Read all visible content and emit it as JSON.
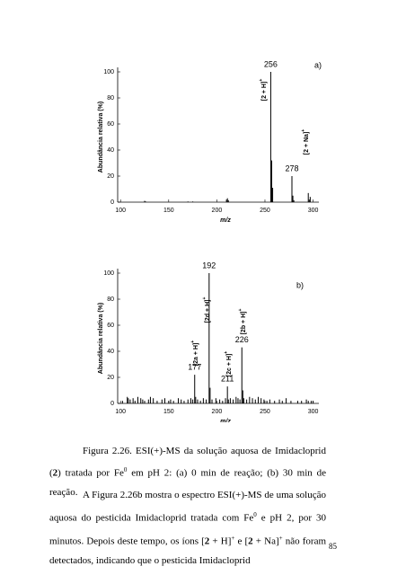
{
  "chart_data": [
    {
      "type": "bar",
      "panel": "a)",
      "ylabel": "Abundância relativa (%)",
      "xlabel": "m/z",
      "xlim": [
        97,
        306
      ],
      "ylim": [
        0,
        100
      ],
      "xticks": [
        100,
        150,
        200,
        250,
        300
      ],
      "yticks": [
        0,
        20,
        40,
        60,
        80,
        100
      ],
      "color": "#000000",
      "x": [
        125,
        126,
        170,
        175,
        210,
        211,
        212,
        256,
        257,
        258,
        278,
        279,
        280,
        295,
        296,
        297
      ],
      "values": [
        1,
        0.5,
        0.5,
        0.5,
        2,
        3,
        1.5,
        100,
        32,
        11,
        20,
        5,
        1.5,
        7,
        2,
        4
      ],
      "peak_labels": [
        {
          "x": 256,
          "label": "256"
        },
        {
          "x": 278,
          "label": "278"
        }
      ],
      "annotations": [
        {
          "text": "[2 + H]",
          "sup": "+"
        },
        {
          "text": "[2 + Na]",
          "sup": "+"
        }
      ]
    },
    {
      "type": "bar",
      "panel": "b)",
      "ylabel": "Abundância relativa (%)",
      "xlabel": "m/z",
      "xlim": [
        97,
        306
      ],
      "ylim": [
        0,
        100
      ],
      "xticks": [
        100,
        150,
        200,
        250,
        300
      ],
      "yticks": [
        0,
        20,
        40,
        60,
        80,
        100
      ],
      "color": "#000000",
      "x": [
        102,
        107,
        108,
        110,
        113,
        115,
        118,
        121,
        123,
        125,
        129,
        131,
        134,
        138,
        143,
        146,
        150,
        152,
        155,
        160,
        163,
        166,
        170,
        173,
        175,
        177,
        178,
        180,
        183,
        186,
        189,
        192,
        193,
        195,
        199,
        203,
        206,
        209,
        211,
        212,
        214,
        217,
        220,
        222,
        224,
        226,
        227,
        228,
        231,
        234,
        237,
        240,
        243,
        246,
        249,
        252,
        255,
        260,
        265,
        268,
        272,
        277,
        284,
        288,
        293,
        295,
        298,
        300
      ],
      "values": [
        2,
        5,
        4,
        3,
        4,
        2,
        5,
        4,
        3,
        2,
        3,
        5,
        4,
        2,
        3,
        4,
        2,
        3,
        2,
        4,
        3,
        2,
        3,
        4,
        3,
        22,
        5,
        3,
        2,
        4,
        3,
        100,
        12,
        3,
        4,
        3,
        2,
        4,
        13,
        3,
        4,
        3,
        5,
        4,
        3,
        43,
        10,
        4,
        3,
        5,
        4,
        3,
        5,
        4,
        3,
        2,
        3,
        2,
        3,
        2,
        4,
        2,
        2,
        2,
        3,
        2,
        2,
        2
      ],
      "peak_labels": [
        {
          "x": 192,
          "label": "192"
        },
        {
          "x": 226,
          "label": "226"
        },
        {
          "x": 177,
          "label": "177"
        },
        {
          "x": 211,
          "label": "211"
        }
      ],
      "annotations": [
        {
          "text": "[2a + H]",
          "sup": "+"
        },
        {
          "text": "[2d + H]",
          "sup": "+"
        },
        {
          "text": "[2c + H]",
          "sup": "+"
        },
        {
          "text": "[2b + H]",
          "sup": "+"
        }
      ]
    }
  ],
  "caption": [
    {
      "text": "Figura 2.26. ESI(+)-MS da solução aquosa de Imidacloprid ("
    },
    {
      "text": "2",
      "style": "bold"
    },
    {
      "text": ") tratada  por Fe"
    },
    {
      "text": "0",
      "style": "sup"
    },
    {
      "text": " em pH 2: (a) 0 min de reação; (b) 30 min de reação."
    }
  ],
  "paragraph": [
    {
      "text": "A Figura 2.26b mostra o espectro ESI(+)-MS de uma solução aquosa do pesticida Imidacloprid tratada com Fe"
    },
    {
      "text": "0",
      "style": "sup"
    },
    {
      "text": " e pH  2, por 30 minutos. Depois deste tempo, os íons ["
    },
    {
      "text": "2",
      "style": "bold"
    },
    {
      "text": " + H]"
    },
    {
      "text": "+",
      "style": "sup"
    },
    {
      "text": " e ["
    },
    {
      "text": "2",
      "style": "bold"
    },
    {
      "text": " + Na]"
    },
    {
      "text": "+",
      "style": "sup"
    },
    {
      "text": " não foram detectados,  indicando que o pesticida Imidacloprid"
    }
  ],
  "page_number": "85"
}
